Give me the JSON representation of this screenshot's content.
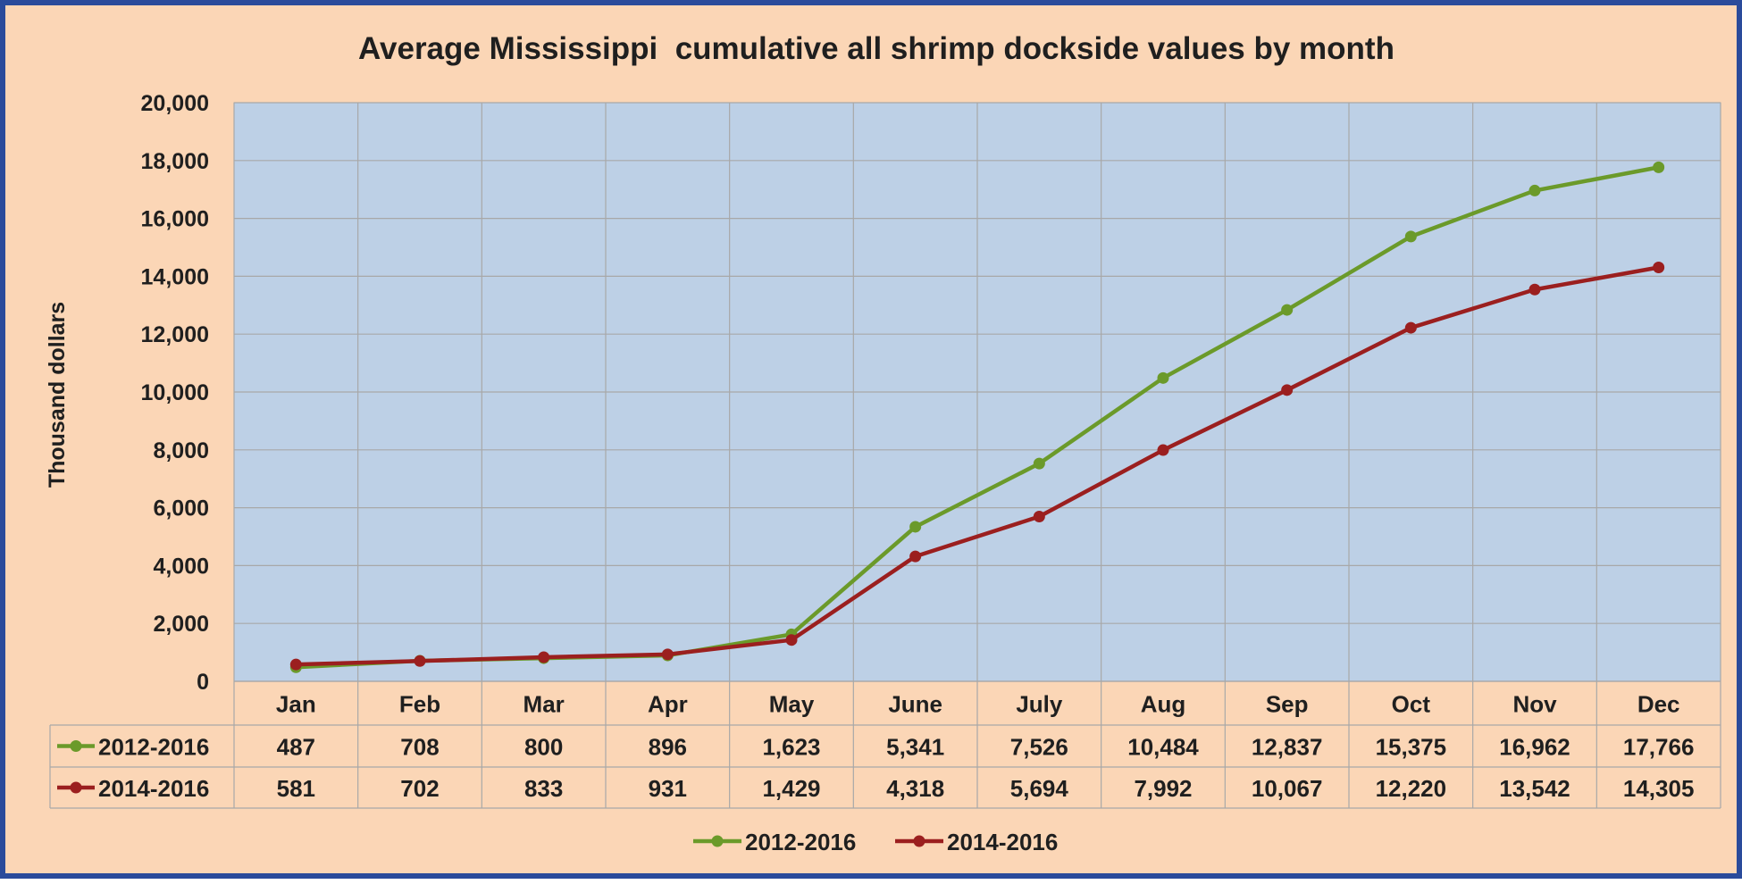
{
  "chart_data": {
    "type": "line",
    "title": "Average Mississippi  cumulative all shrimp dockside values by month",
    "ylabel": "Thousand dollars",
    "xlabel": "",
    "ylim": [
      0,
      20000
    ],
    "yticks": [
      0,
      2000,
      4000,
      6000,
      8000,
      10000,
      12000,
      14000,
      16000,
      18000,
      20000
    ],
    "ytick_labels": [
      "0",
      "2,000",
      "4,000",
      "6,000",
      "8,000",
      "10,000",
      "12,000",
      "14,000",
      "16,000",
      "18,000",
      "20,000"
    ],
    "grid": true,
    "legend_position": "bottom",
    "categories": [
      "Jan",
      "Feb",
      "Mar",
      "Apr",
      "May",
      "June",
      "July",
      "Aug",
      "Sep",
      "Oct",
      "Nov",
      "Dec"
    ],
    "series": [
      {
        "name": "2012-2016",
        "color": "#6b9a2a",
        "values": [
          487,
          708,
          800,
          896,
          1623,
          5341,
          7526,
          10484,
          12837,
          15375,
          16962,
          17766
        ],
        "labels": [
          "487",
          "708",
          "800",
          "896",
          "1,623",
          "5,341",
          "7,526",
          "10,484",
          "12,837",
          "15,375",
          "16,962",
          "17,766"
        ]
      },
      {
        "name": "2014-2016",
        "color": "#9b1f1f",
        "values": [
          581,
          702,
          833,
          931,
          1429,
          4318,
          5694,
          7992,
          10067,
          12220,
          13542,
          14305
        ],
        "labels": [
          "581",
          "702",
          "833",
          "931",
          "1,429",
          "4,318",
          "5,694",
          "7,992",
          "10,067",
          "12,220",
          "13,542",
          "14,305"
        ]
      }
    ],
    "plot_background": "#bdd0e6",
    "gridline_color": "#a8a8a8"
  }
}
